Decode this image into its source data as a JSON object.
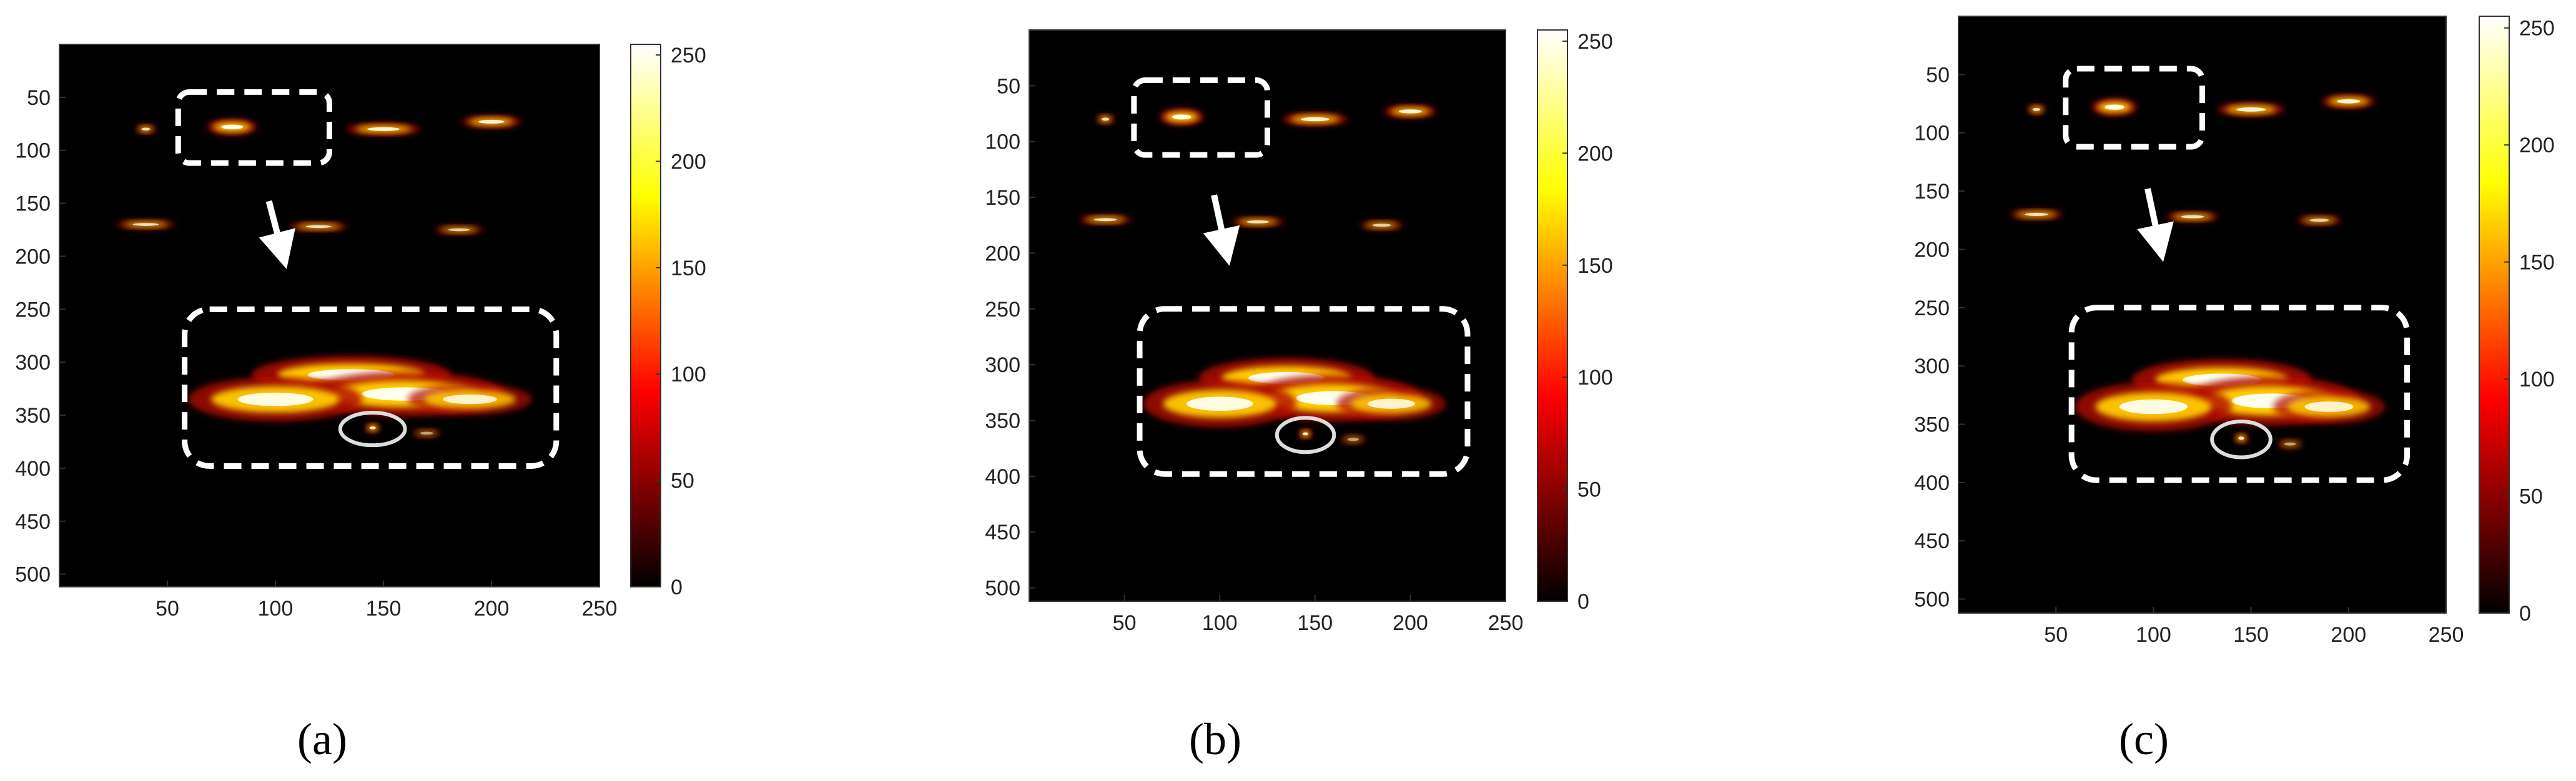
{
  "chart_data": [
    {
      "type": "heatmap",
      "panel_label": "(a)",
      "colormap": "hot",
      "x_ticks": [
        "50",
        "100",
        "150",
        "200",
        "250"
      ],
      "y_ticks": [
        "50",
        "100",
        "150",
        "200",
        "250",
        "300",
        "350",
        "400",
        "450",
        "500"
      ],
      "colorbar_ticks": [
        "0",
        "50",
        "100",
        "150",
        "200",
        "250"
      ],
      "xlim": [
        0,
        250
      ],
      "ylim": [
        0,
        512
      ],
      "clim": [
        0,
        255
      ]
    },
    {
      "type": "heatmap",
      "panel_label": "(b)",
      "colormap": "hot",
      "x_ticks": [
        "50",
        "100",
        "150",
        "200",
        "250"
      ],
      "y_ticks": [
        "50",
        "100",
        "150",
        "200",
        "250",
        "300",
        "350",
        "400",
        "450",
        "500"
      ],
      "colorbar_ticks": [
        "0",
        "50",
        "100",
        "150",
        "200",
        "250"
      ],
      "xlim": [
        0,
        250
      ],
      "ylim": [
        0,
        512
      ],
      "clim": [
        0,
        255
      ]
    },
    {
      "type": "heatmap",
      "panel_label": "(c)",
      "colormap": "hot",
      "x_ticks": [
        "50",
        "100",
        "150",
        "200",
        "250"
      ],
      "y_ticks": [
        "50",
        "100",
        "150",
        "200",
        "250",
        "300",
        "350",
        "400",
        "450",
        "500"
      ],
      "colorbar_ticks": [
        "0",
        "50",
        "100",
        "150",
        "200",
        "250"
      ],
      "xlim": [
        0,
        250
      ],
      "ylim": [
        0,
        512
      ],
      "clim": [
        0,
        255
      ]
    }
  ],
  "colors": {
    "background": "#000000",
    "annotation": "#ffffff"
  }
}
